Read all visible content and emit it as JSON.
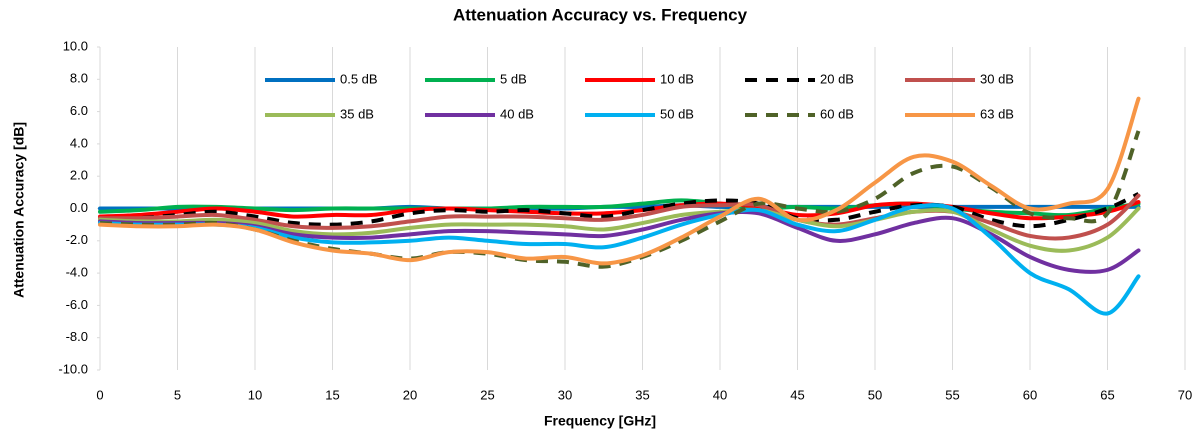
{
  "chart_data": {
    "type": "line",
    "title": "Attenuation Accuracy vs. Frequency",
    "x_label": "Frequency [GHz]",
    "y_label": "Attenuation Accuracy [dB]",
    "xlim": [
      0,
      70
    ],
    "xticks": [
      0,
      5,
      10,
      15,
      20,
      25,
      30,
      35,
      40,
      45,
      50,
      55,
      60,
      65,
      70
    ],
    "ylim": [
      -10,
      10
    ],
    "yticks": [
      {
        "value": -10,
        "label": "-10.0"
      },
      {
        "value": -8,
        "label": "-8.0"
      },
      {
        "value": -6,
        "label": "-6.0"
      },
      {
        "value": -4,
        "label": "-4.0"
      },
      {
        "value": -2,
        "label": "-2.0"
      },
      {
        "value": 0,
        "label": "0.0"
      },
      {
        "value": 2,
        "label": "2.0"
      },
      {
        "value": 4,
        "label": "4.0"
      },
      {
        "value": 6,
        "label": "6.0"
      },
      {
        "value": 8,
        "label": "8.0"
      },
      {
        "value": 10,
        "label": "10.0"
      }
    ],
    "grid": "x",
    "legend": "top",
    "x": [
      0,
      2.5,
      5,
      7.5,
      10,
      12.5,
      15,
      17.5,
      20,
      22.5,
      25,
      27.5,
      30,
      32.5,
      35,
      37.5,
      40,
      42.5,
      45,
      47.5,
      50,
      52.5,
      55,
      57.5,
      60,
      62.5,
      65,
      67
    ],
    "series": [
      {
        "name": "0.5 dB",
        "color": "#0070c0",
        "style": "solid",
        "values": [
          0,
          0,
          0,
          0,
          0,
          0,
          0,
          0,
          0.1,
          0,
          0,
          0,
          0,
          0.1,
          0.1,
          0.2,
          0.1,
          0.1,
          0.1,
          0.1,
          0.1,
          0.1,
          0.1,
          0.1,
          0.1,
          0.1,
          0.1,
          0.1
        ]
      },
      {
        "name": "5 dB",
        "color": "#00b050",
        "style": "solid",
        "values": [
          -0.2,
          -0.1,
          0.1,
          0.1,
          0,
          -0.1,
          0,
          0,
          0,
          0,
          0,
          0.1,
          0.1,
          0.1,
          0.3,
          0.5,
          0.3,
          0,
          0.1,
          0,
          0.2,
          0.3,
          0,
          -0.2,
          -0.3,
          -0.4,
          0,
          0.3
        ]
      },
      {
        "name": "10 dB",
        "color": "#ff0000",
        "style": "solid",
        "values": [
          -0.5,
          -0.4,
          -0.2,
          0,
          -0.2,
          -0.5,
          -0.4,
          -0.4,
          -0.1,
          0,
          -0.1,
          -0.2,
          -0.3,
          -0.3,
          -0.1,
          0.2,
          0.3,
          0.1,
          -0.4,
          -0.3,
          0.2,
          0.3,
          0.1,
          -0.3,
          -0.6,
          -0.5,
          -0.2,
          0.4
        ]
      },
      {
        "name": "20 dB",
        "color": "#000000",
        "style": "dashed",
        "values": [
          -0.7,
          -0.6,
          -0.4,
          -0.2,
          -0.5,
          -0.9,
          -1.0,
          -0.8,
          -0.3,
          -0.1,
          -0.2,
          -0.1,
          -0.3,
          -0.5,
          -0.1,
          0.3,
          0.5,
          0.3,
          -0.6,
          -0.7,
          -0.2,
          0.2,
          0.1,
          -0.7,
          -1.1,
          -0.7,
          0.0,
          0.9
        ]
      },
      {
        "name": "30 dB",
        "color": "#c0504d",
        "style": "solid",
        "values": [
          -0.6,
          -0.6,
          -0.5,
          -0.4,
          -0.7,
          -1.1,
          -1.2,
          -1.1,
          -0.8,
          -0.5,
          -0.5,
          -0.5,
          -0.6,
          -0.7,
          -0.4,
          0.1,
          0.2,
          0.2,
          -0.7,
          -1.0,
          -0.6,
          -0.2,
          -0.2,
          -0.9,
          -1.7,
          -1.8,
          -1.0,
          0.8
        ]
      },
      {
        "name": "35 dB",
        "color": "#9bbb59",
        "style": "solid",
        "values": [
          -0.7,
          -0.8,
          -0.8,
          -0.7,
          -0.9,
          -1.4,
          -1.6,
          -1.5,
          -1.2,
          -1.0,
          -1.0,
          -1.0,
          -1.1,
          -1.3,
          -0.9,
          -0.4,
          -0.2,
          -0.1,
          -0.7,
          -1.1,
          -0.7,
          -0.2,
          -0.2,
          -1.3,
          -2.3,
          -2.6,
          -1.8,
          0.0
        ]
      },
      {
        "name": "40 dB",
        "color": "#7030a0",
        "style": "solid",
        "values": [
          -0.8,
          -0.9,
          -0.9,
          -0.9,
          -1.1,
          -1.6,
          -1.8,
          -1.8,
          -1.6,
          -1.4,
          -1.4,
          -1.5,
          -1.6,
          -1.7,
          -1.3,
          -0.7,
          -0.3,
          -0.3,
          -1.2,
          -2.0,
          -1.6,
          -0.9,
          -0.6,
          -1.6,
          -3.0,
          -3.8,
          -3.8,
          -2.6
        ]
      },
      {
        "name": "50 dB",
        "color": "#00b0f0",
        "style": "solid",
        "values": [
          -0.9,
          -1.0,
          -1.0,
          -1.0,
          -1.2,
          -1.8,
          -2.1,
          -2.1,
          -2.0,
          -1.8,
          -2.0,
          -2.2,
          -2.2,
          -2.4,
          -1.8,
          -1.0,
          -0.4,
          -0.1,
          -1.0,
          -1.4,
          -0.7,
          0.1,
          0.0,
          -1.8,
          -4.0,
          -5.0,
          -6.5,
          -4.2
        ]
      },
      {
        "name": "60 dB",
        "color": "#4f6228",
        "style": "dashed",
        "values": [
          -0.9,
          -1.0,
          -1.0,
          -0.9,
          -1.3,
          -2.0,
          -2.5,
          -2.8,
          -3.1,
          -2.7,
          -2.8,
          -3.2,
          -3.3,
          -3.6,
          -3.0,
          -2.0,
          -0.8,
          0.3,
          0.0,
          -0.2,
          0.6,
          2.2,
          2.6,
          1.3,
          -0.3,
          -0.6,
          -0.3,
          4.8
        ]
      },
      {
        "name": "63 dB",
        "color": "#f79646",
        "style": "solid",
        "values": [
          -1.0,
          -1.1,
          -1.1,
          -1.0,
          -1.3,
          -2.1,
          -2.6,
          -2.8,
          -3.2,
          -2.7,
          -2.7,
          -3.1,
          -3.0,
          -3.4,
          -2.9,
          -1.8,
          -0.5,
          0.6,
          -0.7,
          -0.1,
          1.6,
          3.2,
          2.9,
          1.4,
          0.0,
          0.3,
          1.2,
          6.8
        ]
      }
    ]
  }
}
